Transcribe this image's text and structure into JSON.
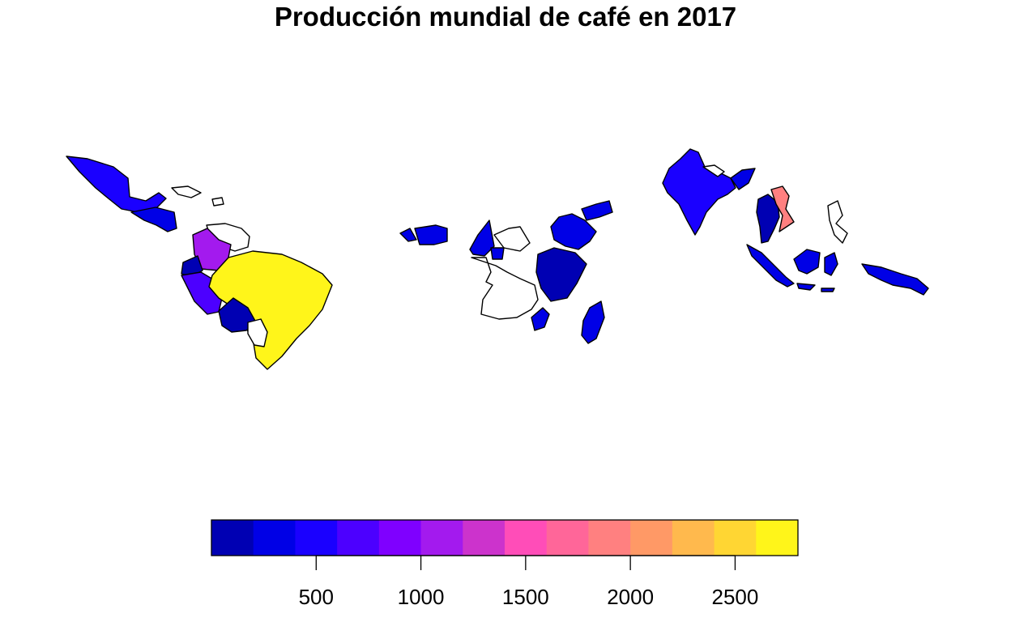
{
  "title": "Producción mundial de café en 2017",
  "palette": {
    "no_data": "#ffffff",
    "legend_colors": [
      "#0000B3",
      "#0000E6",
      "#1A00FF",
      "#4C00FF",
      "#7F00FF",
      "#A31AEE",
      "#CC33CC",
      "#FF4DB8",
      "#FF6699",
      "#FF8080",
      "#FF9966",
      "#FFB94D",
      "#FFD633",
      "#FFF51A"
    ]
  },
  "legend": {
    "range": [
      0,
      2800
    ],
    "ticks": [
      500,
      1000,
      1500,
      2000,
      2500
    ],
    "tick_labels": [
      "500",
      "1000",
      "1500",
      "2000",
      "2500"
    ]
  },
  "regions": [
    {
      "id": "mexico",
      "color": "#1A00FF"
    },
    {
      "id": "central-america",
      "color": "#0000E6"
    },
    {
      "id": "caribbean",
      "color": "#ffffff"
    },
    {
      "id": "venezuela-guianas",
      "color": "#ffffff"
    },
    {
      "id": "colombia",
      "color": "#A31AEE"
    },
    {
      "id": "ecuador",
      "color": "#0000B3"
    },
    {
      "id": "peru",
      "color": "#4C00FF"
    },
    {
      "id": "brazil",
      "color": "#FFF51A"
    },
    {
      "id": "bolivia",
      "color": "#0000B3"
    },
    {
      "id": "paraguay",
      "color": "#ffffff"
    },
    {
      "id": "west-africa",
      "color": "#0000E6"
    },
    {
      "id": "guinea-west",
      "color": "#0000E6"
    },
    {
      "id": "central-africa-east",
      "color": "#ffffff"
    },
    {
      "id": "cameroon-car",
      "color": "#0000E6"
    },
    {
      "id": "central-africa-west",
      "color": "#ffffff"
    },
    {
      "id": "ethiopia",
      "color": "#0000E6"
    },
    {
      "id": "yemen",
      "color": "#0000E6"
    },
    {
      "id": "east-africa",
      "color": "#0000B3"
    },
    {
      "id": "malawi",
      "color": "#0000E6"
    },
    {
      "id": "madagascar",
      "color": "#0000E6"
    },
    {
      "id": "india",
      "color": "#1A00FF"
    },
    {
      "id": "himalaya",
      "color": "#ffffff"
    },
    {
      "id": "burma-region",
      "color": "#0000E6"
    },
    {
      "id": "thailand-laos",
      "color": "#0000B3"
    },
    {
      "id": "vietnam",
      "color": "#FF8080"
    },
    {
      "id": "philippines",
      "color": "#ffffff"
    },
    {
      "id": "indonesia",
      "color": "#0000E6"
    },
    {
      "id": "new-guinea",
      "color": "#0000E6"
    }
  ]
}
